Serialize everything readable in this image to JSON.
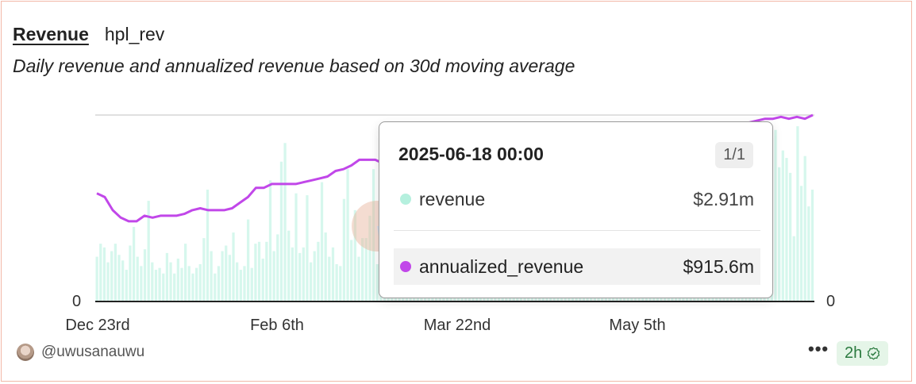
{
  "header": {
    "title": "Revenue",
    "query_name": "hpl_rev",
    "subtitle": "Daily revenue and annualized revenue based on 30d moving average"
  },
  "colors": {
    "revenue": "#b5f0de",
    "annualized_revenue": "#c147e9",
    "card_border": "#f2b8a8"
  },
  "chart_data": {
    "type": "bar+line",
    "x_start": "2024-12-23",
    "x_end": "2025-06-18",
    "x_ticks": [
      "Dec 23rd",
      "Feb 6th",
      "Mar 22nd",
      "May 5th"
    ],
    "y_left_tick": "0",
    "y_right_tick": "0",
    "series": [
      {
        "name": "revenue",
        "type": "bar",
        "values": [
          0.24,
          0.31,
          0.29,
          0.21,
          0.27,
          0.31,
          0.25,
          0.22,
          0.17,
          0.3,
          0.4,
          0.24,
          0.19,
          0.28,
          0.54,
          0.21,
          0.17,
          0.18,
          0.15,
          0.26,
          0.21,
          0.15,
          0.23,
          0.18,
          0.31,
          0.19,
          0.15,
          0.18,
          0.2,
          0.34,
          0.6,
          0.27,
          0.15,
          0.19,
          0.27,
          0.3,
          0.25,
          0.37,
          0.21,
          0.17,
          0.19,
          0.44,
          0.18,
          0.31,
          0.32,
          0.23,
          0.32,
          0.65,
          0.27,
          0.36,
          0.75,
          0.85,
          0.38,
          0.29,
          0.58,
          0.26,
          0.29,
          0.57,
          0.21,
          0.27,
          0.32,
          0.64,
          0.37,
          0.24,
          0.29,
          0.2,
          0.19,
          0.55,
          0.71,
          0.33,
          0.49,
          0.24,
          0.34,
          0.34,
          0.46,
          0.71,
          0.2,
          0.25,
          0.61,
          0.15,
          0.39,
          0.27,
          0.23,
          0.2,
          0.26,
          0.13,
          0.11,
          0.09,
          0.19,
          0.2,
          0.36,
          0.12,
          0.12,
          0.16,
          0.24,
          0.26,
          0.22,
          0.38,
          0.12,
          0.14,
          0.3,
          0.14,
          0.29,
          0.19,
          0.23,
          0.48,
          0.33,
          0.4,
          0.19,
          0.12,
          0.32,
          0.4,
          0.25,
          0.27,
          0.32,
          0.4,
          0.33,
          0.29,
          0.21,
          0.31,
          0.3,
          0.35,
          0.38,
          0.24,
          0.3,
          0.32,
          0.36,
          0.28,
          0.41,
          0.26,
          0.31,
          0.3,
          0.34,
          0.3,
          0.33,
          0.28,
          0.4,
          0.3,
          0.24,
          0.37,
          0.29,
          0.33,
          0.35,
          0.3,
          0.33,
          0.28,
          0.36,
          0.31,
          0.3,
          0.34,
          0.36,
          0.31,
          0.33,
          0.3,
          0.35,
          0.28,
          0.33,
          0.37,
          0.29,
          0.34,
          0.32,
          0.3,
          0.36,
          0.31,
          0.33,
          0.29,
          0.35,
          0.32,
          0.34,
          0.3,
          0.35,
          0.32,
          0.34,
          0.31,
          0.33,
          0.34,
          0.58,
          0.8,
          0.75,
          0.49,
          0.64,
          0.55,
          0.61,
          0.83,
          0.92,
          0.72,
          0.81,
          0.77,
          0.69,
          0.35,
          0.94,
          0.62,
          0.78,
          0.51,
          0.6
        ]
      },
      {
        "name": "annualized_revenue",
        "type": "line",
        "values": [
          0.58,
          0.56,
          0.49,
          0.45,
          0.43,
          0.43,
          0.46,
          0.45,
          0.46,
          0.46,
          0.46,
          0.47,
          0.49,
          0.5,
          0.49,
          0.49,
          0.49,
          0.5,
          0.53,
          0.56,
          0.61,
          0.61,
          0.63,
          0.63,
          0.63,
          0.63,
          0.64,
          0.65,
          0.66,
          0.67,
          0.7,
          0.71,
          0.73,
          0.76,
          0.76,
          0.76,
          0.74,
          0.73,
          0.73,
          0.74,
          0.75,
          0.75,
          0.73,
          0.71,
          0.67,
          0.63,
          0.61,
          0.61,
          0.62,
          0.63,
          0.64,
          0.65,
          0.66,
          0.67,
          0.66,
          0.65,
          0.63,
          0.62,
          0.61,
          0.6,
          0.61,
          0.62,
          0.63,
          0.65,
          0.66,
          0.67,
          0.69,
          0.7,
          0.71,
          0.72,
          0.74,
          0.76,
          0.78,
          0.8,
          0.82,
          0.84,
          0.86,
          0.88,
          0.9,
          0.92,
          0.94,
          0.95,
          0.96,
          0.97,
          0.98,
          0.98,
          0.99,
          0.98,
          0.99,
          0.98,
          1.0
        ]
      }
    ]
  },
  "tooltip": {
    "date": "2025-06-18 00:00",
    "page": "1/1",
    "rows": [
      {
        "label": "revenue",
        "value": "$2.91m"
      },
      {
        "label": "annualized_revenue",
        "value": "$915.6m"
      }
    ]
  },
  "footer": {
    "username": "@uwusanauwu",
    "more": "•••",
    "age": "2h"
  }
}
